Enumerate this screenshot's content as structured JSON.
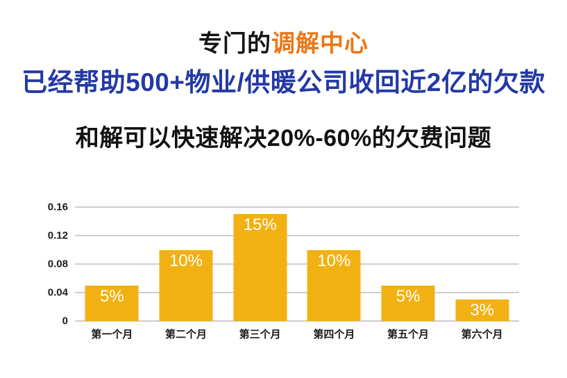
{
  "slide": {
    "title": {
      "prefix": "专门的",
      "highlight": "调解中心",
      "prefix_color": "#141414",
      "highlight_color": "#ED7617"
    },
    "subtitle": {
      "text": "已经帮助500+物业/供暖公司收回近2亿的欠款",
      "color": "#2339A5"
    },
    "statement": {
      "text": "和解可以快速解决20%-60%的欠费问题",
      "color": "#111111"
    }
  },
  "chart_data": {
    "type": "bar",
    "title": "",
    "xlabel": "",
    "ylabel": "",
    "categories": [
      "第一个月",
      "第二个月",
      "第三个月",
      "第四个月",
      "第五个月",
      "第六个月"
    ],
    "values": [
      0.05,
      0.1,
      0.15,
      0.1,
      0.05,
      0.03
    ],
    "bar_labels": [
      "5%",
      "10%",
      "15%",
      "10%",
      "5%",
      "3%"
    ],
    "ylim": [
      0,
      0.16
    ],
    "y_ticks": [
      {
        "value": 0,
        "label": "0"
      },
      {
        "value": 0.04,
        "label": "0.04"
      },
      {
        "value": 0.08,
        "label": "0.08"
      },
      {
        "value": 0.12,
        "label": "0.12"
      },
      {
        "value": 0.16,
        "label": "0.16"
      }
    ],
    "grid": true,
    "legend": false,
    "bar_color": "#F2B113",
    "grid_color": "#CDCDCD",
    "value_label_color": "#FFFFFF",
    "axis_text_color": "#1A1A1A"
  }
}
